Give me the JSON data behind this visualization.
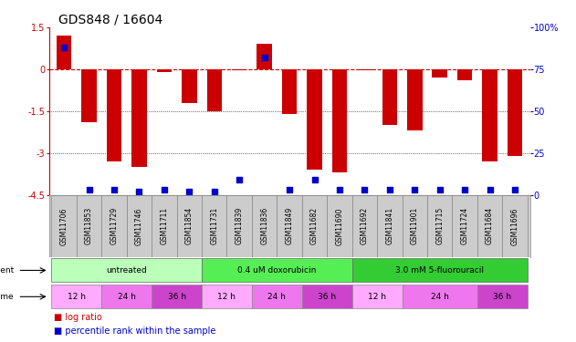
{
  "title": "GDS848 / 16604",
  "samples": [
    "GSM11706",
    "GSM11853",
    "GSM11729",
    "GSM11746",
    "GSM11711",
    "GSM11854",
    "GSM11731",
    "GSM11839",
    "GSM11836",
    "GSM11849",
    "GSM11682",
    "GSM11690",
    "GSM11692",
    "GSM11841",
    "GSM11901",
    "GSM11715",
    "GSM11724",
    "GSM11684",
    "GSM11696"
  ],
  "log_ratio": [
    1.2,
    -1.9,
    -3.3,
    -3.5,
    -0.1,
    -1.2,
    -1.5,
    -0.05,
    0.9,
    -1.6,
    -3.6,
    -3.7,
    -0.05,
    -2.0,
    -2.2,
    -0.3,
    -0.4,
    -3.3,
    -3.1
  ],
  "percentile": [
    88,
    3,
    3,
    2,
    3,
    2,
    2,
    9,
    82,
    3,
    9,
    3,
    3,
    3,
    3,
    3,
    3,
    3,
    3
  ],
  "ylim": [
    -4.5,
    1.5
  ],
  "y2lim": [
    0,
    100
  ],
  "yticks": [
    -4.5,
    -3.0,
    -1.5,
    0.0,
    1.5
  ],
  "ytick_labels": [
    "-4.5",
    "-3",
    "-1.5",
    "0",
    "1.5"
  ],
  "y2ticks": [
    0,
    25,
    50,
    75,
    100
  ],
  "y2tick_labels": [
    "0",
    "25",
    "50",
    "75",
    "100%"
  ],
  "bar_color": "#cc0000",
  "dot_color": "#0000cc",
  "dashed_color": "#cc0000",
  "agents": [
    {
      "label": "untreated",
      "start": 0,
      "end": 6,
      "color": "#bbffbb"
    },
    {
      "label": "0.4 uM doxorubicin",
      "start": 6,
      "end": 12,
      "color": "#55ee55"
    },
    {
      "label": "3.0 mM 5-fluorouracil",
      "start": 12,
      "end": 19,
      "color": "#33cc33"
    }
  ],
  "times": [
    {
      "label": "12 h",
      "start": 0,
      "end": 2,
      "color": "#ffaaff"
    },
    {
      "label": "24 h",
      "start": 2,
      "end": 4,
      "color": "#ee77ee"
    },
    {
      "label": "36 h",
      "start": 4,
      "end": 6,
      "color": "#cc44cc"
    },
    {
      "label": "12 h",
      "start": 6,
      "end": 8,
      "color": "#ffaaff"
    },
    {
      "label": "24 h",
      "start": 8,
      "end": 10,
      "color": "#ee77ee"
    },
    {
      "label": "36 h",
      "start": 10,
      "end": 12,
      "color": "#cc44cc"
    },
    {
      "label": "12 h",
      "start": 12,
      "end": 14,
      "color": "#ffaaff"
    },
    {
      "label": "24 h",
      "start": 14,
      "end": 17,
      "color": "#ee77ee"
    },
    {
      "label": "36 h",
      "start": 17,
      "end": 19,
      "color": "#cc44cc"
    }
  ],
  "agent_label": "agent",
  "time_label": "time",
  "bar_width": 0.6,
  "dot_size": 18,
  "axis_color": "#cc0000",
  "axis2_color": "#0000cc",
  "bg_color": "#ffffff",
  "sample_bg": "#cccccc",
  "title_fontsize": 10,
  "tick_fontsize": 7,
  "sample_fontsize": 5.5,
  "row_fontsize": 6.5,
  "legend_fontsize": 7
}
